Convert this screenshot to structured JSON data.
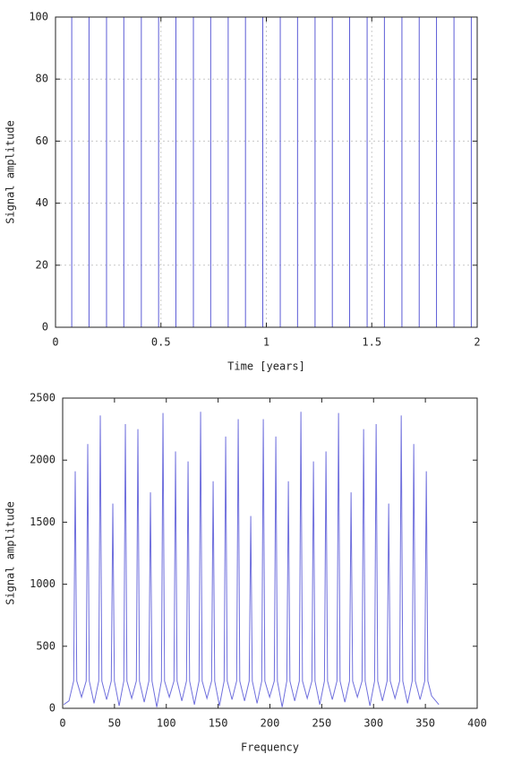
{
  "chart_data": [
    {
      "type": "line",
      "xlabel": "Time [years]",
      "ylabel": "Signal amplitude",
      "color": "#5c5cd6",
      "grid": true,
      "xlim": [
        0,
        2
      ],
      "ylim": [
        0,
        100
      ],
      "xticks": [
        0,
        0.5,
        1,
        1.5,
        2
      ],
      "yticks": [
        0,
        20,
        40,
        60,
        80,
        100
      ],
      "x": [
        0,
        0.077,
        0.077,
        0.077,
        0.159,
        0.159,
        0.159,
        0.242,
        0.242,
        0.242,
        0.324,
        0.324,
        0.324,
        0.407,
        0.407,
        0.407,
        0.489,
        0.489,
        0.489,
        0.571,
        0.571,
        0.571,
        0.654,
        0.654,
        0.654,
        0.736,
        0.736,
        0.736,
        0.819,
        0.819,
        0.819,
        0.901,
        0.901,
        0.901,
        0.983,
        0.983,
        0.983,
        1.066,
        1.066,
        1.066,
        1.148,
        1.148,
        1.148,
        1.231,
        1.231,
        1.231,
        1.313,
        1.313,
        1.313,
        1.395,
        1.395,
        1.395,
        1.478,
        1.478,
        1.478,
        1.56,
        1.56,
        1.56,
        1.643,
        1.643,
        1.643,
        1.725,
        1.725,
        1.725,
        1.807,
        1.807,
        1.807,
        1.89,
        1.89,
        1.89,
        1.972,
        1.972,
        1.972,
        2
      ],
      "values": [
        0,
        0,
        100,
        0,
        0,
        100,
        0,
        0,
        100,
        0,
        0,
        100,
        0,
        0,
        100,
        0,
        0,
        100,
        0,
        0,
        100,
        0,
        0,
        100,
        0,
        0,
        100,
        0,
        0,
        100,
        0,
        0,
        100,
        0,
        0,
        100,
        0,
        0,
        100,
        0,
        0,
        100,
        0,
        0,
        100,
        0,
        0,
        100,
        0,
        0,
        100,
        0,
        0,
        100,
        0,
        0,
        100,
        0,
        0,
        100,
        0,
        0,
        100,
        0,
        0,
        100,
        0,
        0,
        100,
        0,
        0,
        100,
        0,
        0
      ]
    },
    {
      "type": "line",
      "xlabel": "Frequency",
      "ylabel": "Signal amplitude",
      "color": "#7070dd",
      "grid": false,
      "xlim": [
        0,
        400
      ],
      "ylim": [
        0,
        2500
      ],
      "xticks": [
        0,
        50,
        100,
        150,
        200,
        250,
        300,
        350,
        400
      ],
      "yticks": [
        0,
        500,
        1000,
        1500,
        2000,
        2500
      ],
      "x": [
        1,
        6.1,
        10.6,
        12.1,
        13.6,
        18.2,
        22.7,
        24.2,
        25.7,
        30.3,
        34.8,
        36.3,
        37.8,
        42.4,
        46.9,
        48.4,
        49.9,
        54.5,
        59,
        60.5,
        62,
        66.6,
        71.1,
        72.6,
        74.1,
        78.7,
        83.2,
        84.7,
        86.2,
        90.8,
        95.3,
        96.8,
        98.3,
        102.9,
        107.4,
        108.9,
        110.4,
        115,
        119.5,
        121,
        122.5,
        127.1,
        131.6,
        133.1,
        134.6,
        139.2,
        143.7,
        145.2,
        146.7,
        151.3,
        155.8,
        157.3,
        158.8,
        163.4,
        167.9,
        169.4,
        170.9,
        175.5,
        180,
        181.5,
        183,
        187.6,
        192.1,
        193.6,
        195.1,
        199.7,
        204.2,
        205.7,
        207.2,
        211.8,
        216.3,
        217.8,
        219.3,
        223.9,
        228.4,
        229.9,
        231.4,
        236,
        240.5,
        242,
        243.5,
        248.1,
        252.6,
        254.1,
        255.6,
        260.2,
        264.7,
        266.2,
        267.7,
        272.3,
        276.8,
        278.3,
        279.8,
        284.4,
        288.9,
        290.4,
        291.9,
        296.5,
        301,
        302.5,
        304,
        308.6,
        313.1,
        314.6,
        316.1,
        320.7,
        325.2,
        326.7,
        328.2,
        332.8,
        337.3,
        338.8,
        340.3,
        344.9,
        349.4,
        350.9,
        352.4,
        356,
        363
      ],
      "values": [
        30,
        60,
        220,
        1910,
        220,
        90,
        220,
        2130,
        220,
        40,
        220,
        2360,
        220,
        70,
        220,
        1650,
        220,
        20,
        220,
        2290,
        220,
        80,
        220,
        2250,
        220,
        50,
        220,
        1740,
        220,
        10,
        220,
        2380,
        220,
        90,
        220,
        2070,
        220,
        60,
        220,
        1990,
        220,
        30,
        220,
        2390,
        220,
        80,
        220,
        1830,
        220,
        20,
        220,
        2190,
        220,
        70,
        220,
        2330,
        220,
        60,
        220,
        1550,
        220,
        40,
        220,
        2330,
        220,
        90,
        220,
        2190,
        220,
        10,
        220,
        1830,
        220,
        60,
        220,
        2390,
        220,
        80,
        220,
        1990,
        220,
        30,
        220,
        2070,
        220,
        70,
        220,
        2380,
        220,
        50,
        220,
        1740,
        220,
        90,
        220,
        2250,
        220,
        20,
        220,
        2290,
        220,
        60,
        220,
        1650,
        220,
        80,
        220,
        2360,
        220,
        40,
        220,
        2130,
        220,
        70,
        220,
        1910,
        220,
        100,
        30
      ]
    }
  ]
}
